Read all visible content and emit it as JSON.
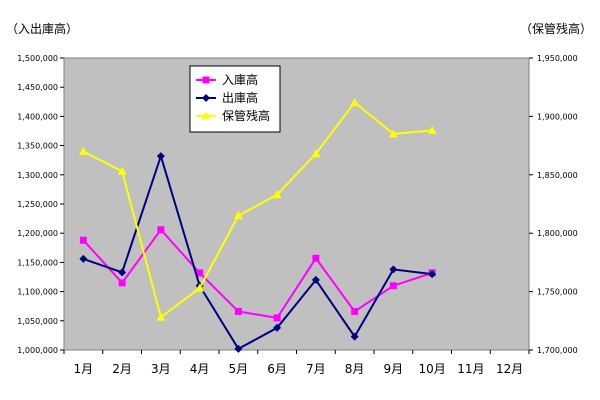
{
  "chart_data": {
    "type": "line",
    "categories": [
      "1月",
      "2月",
      "3月",
      "4月",
      "5月",
      "6月",
      "7月",
      "8月",
      "9月",
      "10月",
      "11月",
      "12月"
    ],
    "y_left": {
      "label": "（入出庫高）",
      "range": [
        1000000,
        1500000
      ],
      "ticks": [
        "1,000,000",
        "1,050,000",
        "1,100,000",
        "1,150,000",
        "1,200,000",
        "1,250,000",
        "1,300,000",
        "1,350,000",
        "1,400,000",
        "1,450,000",
        "1,500,000"
      ]
    },
    "y_right": {
      "label": "（保管残高）",
      "range": [
        1700000,
        1950000
      ],
      "ticks": [
        "1,700,000",
        "1,750,000",
        "1,800,000",
        "1,850,000",
        "1,900,000",
        "1,950,000"
      ]
    },
    "series": [
      {
        "name": "入庫高",
        "axis": "left",
        "color": "#ff00ff",
        "marker": "square",
        "values": [
          1188000,
          1115000,
          1206000,
          1132000,
          1066000,
          1055000,
          1157000,
          1066000,
          1110000,
          1132000,
          null,
          null
        ]
      },
      {
        "name": "出庫高",
        "axis": "left",
        "color": "#000080",
        "marker": "diamond",
        "values": [
          1156000,
          1133000,
          1332000,
          1110000,
          1002000,
          1038000,
          1120000,
          1023000,
          1138000,
          1130000,
          null,
          null
        ]
      },
      {
        "name": "保管残高",
        "axis": "right",
        "color": "#ffff00",
        "marker": "triangle",
        "values": [
          1870000,
          1853000,
          1728000,
          1753000,
          1815000,
          1833000,
          1868000,
          1912000,
          1885000,
          1888000,
          null,
          null
        ]
      }
    ],
    "plot_background": "#c0c0c0",
    "grid": false,
    "legend_position": "top-left inside plot"
  }
}
